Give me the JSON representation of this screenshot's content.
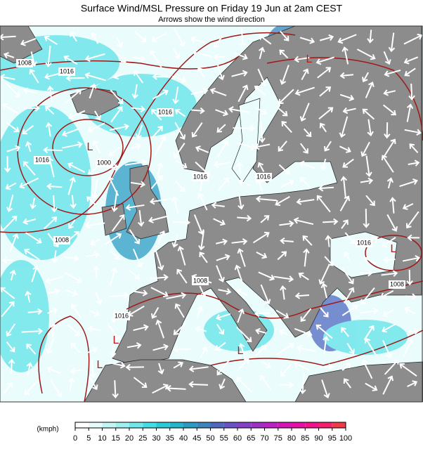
{
  "header": {
    "title": "Surface Wind/MSL Pressure on Friday 19 Jun at 2am CEST",
    "subtitle": "Arrows show the wind direction"
  },
  "map": {
    "isobar_labels": [
      "1008",
      "1016",
      "1000",
      "1008",
      "1016",
      "1016",
      "1016",
      "1016",
      "1016",
      "1008",
      "1008",
      "1016"
    ],
    "lows": [
      "L",
      "L",
      "L",
      "L",
      "L",
      "L"
    ]
  },
  "colorbar": {
    "unit": "(kmph)",
    "ticks": [
      0,
      5,
      10,
      15,
      20,
      25,
      30,
      35,
      40,
      45,
      50,
      55,
      60,
      65,
      70,
      75,
      80,
      85,
      90,
      95,
      100
    ],
    "colors": [
      "#ffffff",
      "#e6fbfb",
      "#c4f5f5",
      "#9cf0f0",
      "#6fe8ea",
      "#44dde3",
      "#2bc9d6",
      "#26b3cc",
      "#2a9cc4",
      "#3a84bf",
      "#5068c0",
      "#6a52c4",
      "#8440c6",
      "#a030c6",
      "#bd22c2",
      "#d416b8",
      "#e610a6",
      "#f2128c",
      "#f5206c",
      "#f03a48"
    ]
  }
}
